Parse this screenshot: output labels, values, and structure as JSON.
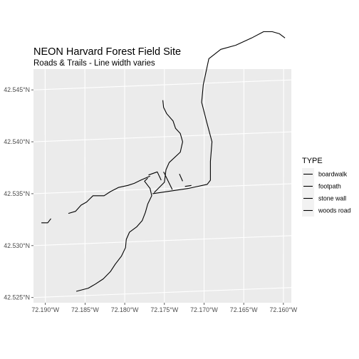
{
  "chart_data": {
    "type": "map",
    "title": "NEON Harvard Forest Field Site",
    "subtitle": "Roads & Trails - Line width varies",
    "x_ticks": [
      "72.190°W",
      "72.185°W",
      "72.180°W",
      "72.175°W",
      "72.170°W",
      "72.165°W",
      "72.160°W"
    ],
    "y_ticks": [
      "42.525°N",
      "42.530°N",
      "42.535°N",
      "42.540°N",
      "42.545°N"
    ],
    "xlim": [
      -72.1915,
      -72.159
    ],
    "ylim": [
      42.5245,
      42.547
    ],
    "grid": true,
    "legend": {
      "title": "TYPE",
      "position": "right",
      "entries": [
        "boardwalk",
        "footpath",
        "stone wall",
        "woods road"
      ]
    },
    "colors": {
      "panel": "#ebebeb",
      "grid": "#ffffff",
      "line": "#000000",
      "legend_key": "#f2f2f2"
    },
    "features": [
      {
        "type": "woods road",
        "coords": [
          [
            -72.1861,
            42.5256
          ],
          [
            -72.1846,
            42.5259
          ],
          [
            -72.1837,
            42.5263
          ],
          [
            -72.1827,
            42.5268
          ],
          [
            -72.1818,
            42.5275
          ],
          [
            -72.1812,
            42.5282
          ],
          [
            -72.1804,
            42.529
          ],
          [
            -72.1799,
            42.5298
          ],
          [
            -72.1798,
            42.5306
          ],
          [
            -72.1794,
            42.5313
          ],
          [
            -72.1785,
            42.5318
          ],
          [
            -72.1778,
            42.5324
          ],
          [
            -72.1774,
            42.5332
          ],
          [
            -72.1771,
            42.534
          ],
          [
            -72.1766,
            42.5348
          ],
          [
            -72.1768,
            42.5355
          ],
          [
            -72.1775,
            42.5362
          ],
          [
            -72.1771,
            42.5365
          ]
        ]
      },
      {
        "type": "woods road",
        "coords": [
          [
            -72.1871,
            42.5331
          ],
          [
            -72.1862,
            42.5333
          ],
          [
            -72.1855,
            42.5339
          ],
          [
            -72.1848,
            42.5342
          ],
          [
            -72.184,
            42.5348
          ],
          [
            -72.1826,
            42.5348
          ],
          [
            -72.1818,
            42.5352
          ],
          [
            -72.1808,
            42.5356
          ],
          [
            -72.1796,
            42.5358
          ],
          [
            -72.1788,
            42.536
          ],
          [
            -72.178,
            42.5363
          ],
          [
            -72.1768,
            42.5367
          ]
        ]
      },
      {
        "type": "woods road",
        "coords": [
          [
            -72.1765,
            42.535
          ],
          [
            -72.172,
            42.5355
          ],
          [
            -72.1696,
            42.5359
          ],
          [
            -72.1692,
            42.5363
          ],
          [
            -72.1692,
            42.5381
          ],
          [
            -72.169,
            42.54
          ],
          [
            -72.1697,
            42.542
          ],
          [
            -72.1703,
            42.5438
          ],
          [
            -72.1701,
            42.5455
          ],
          [
            -72.1694,
            42.548
          ],
          [
            -72.1679,
            42.5489
          ],
          [
            -72.166,
            42.5493
          ],
          [
            -72.164,
            42.55
          ],
          [
            -72.1625,
            42.5506
          ],
          [
            -72.1614,
            42.5506
          ],
          [
            -72.1605,
            42.5504
          ],
          [
            -72.1598,
            42.55
          ]
        ]
      },
      {
        "type": "footpath",
        "coords": [
          [
            -72.1763,
            42.5351
          ],
          [
            -72.175,
            42.5361
          ],
          [
            -72.1748,
            42.5373
          ],
          [
            -72.1744,
            42.538
          ],
          [
            -72.173,
            42.539
          ],
          [
            -72.1727,
            42.54
          ],
          [
            -72.173,
            42.5408
          ],
          [
            -72.1736,
            42.5413
          ],
          [
            -72.1739,
            42.542
          ],
          [
            -72.1747,
            42.5427
          ],
          [
            -72.1751,
            42.5433
          ],
          [
            -72.1752,
            42.544
          ]
        ]
      },
      {
        "type": "stone wall",
        "coords": [
          [
            -72.177,
            42.5368
          ],
          [
            -72.1759,
            42.5371
          ],
          [
            -72.1754,
            42.5363
          ]
        ]
      },
      {
        "type": "stone wall",
        "coords": [
          [
            -72.1751,
            42.5371
          ],
          [
            -72.174,
            42.5354
          ]
        ]
      },
      {
        "type": "boardwalk",
        "coords": [
          [
            -72.1731,
            42.5369
          ],
          [
            -72.1727,
            42.5362
          ]
        ]
      },
      {
        "type": "boardwalk",
        "coords": [
          [
            -72.1724,
            42.5357
          ],
          [
            -72.1716,
            42.5358
          ]
        ]
      },
      {
        "type": "footpath",
        "coords": [
          [
            -72.1905,
            42.5322
          ],
          [
            -72.1897,
            42.5322
          ],
          [
            -72.1893,
            42.5326
          ]
        ]
      }
    ]
  }
}
